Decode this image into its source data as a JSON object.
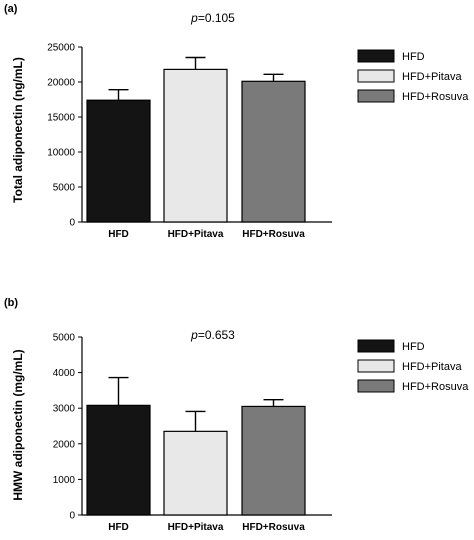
{
  "chart_data": [
    {
      "type": "bar",
      "panel_label": "(a)",
      "annotation": {
        "prefix": "p",
        "text": "=0.105"
      },
      "ylabel": "Total adiponectin (ng/mL)",
      "ylim": [
        0,
        25000
      ],
      "yticks": [
        0,
        5000,
        10000,
        15000,
        20000,
        25000
      ],
      "categories": [
        "HFD",
        "HFD+Pitava",
        "HFD+Rosuva"
      ],
      "values": [
        17400,
        21800,
        20100
      ],
      "error": [
        1500,
        1700,
        1000
      ],
      "colors": [
        "#141414",
        "#e8e8e8",
        "#7a7a7a"
      ],
      "legend": [
        "HFD",
        "HFD+Pitava",
        "HFD+Rosuva"
      ],
      "legend_placement": "right",
      "grid": false
    },
    {
      "type": "bar",
      "panel_label": "(b)",
      "annotation": {
        "prefix": "p",
        "text": "=0.653"
      },
      "ylabel": "HMW adiponectin (mg/mL)",
      "ylim": [
        0,
        5000
      ],
      "yticks": [
        0,
        1000,
        2000,
        3000,
        4000,
        5000
      ],
      "categories": [
        "HFD",
        "HFD+Pitava",
        "HFD+Rosuva"
      ],
      "values": [
        3080,
        2350,
        3050
      ],
      "error": [
        780,
        560,
        190
      ],
      "colors": [
        "#141414",
        "#e8e8e8",
        "#7a7a7a"
      ],
      "legend": [
        "HFD",
        "HFD+Pitava",
        "HFD+Rosuva"
      ],
      "legend_placement": "right",
      "grid": false
    }
  ]
}
